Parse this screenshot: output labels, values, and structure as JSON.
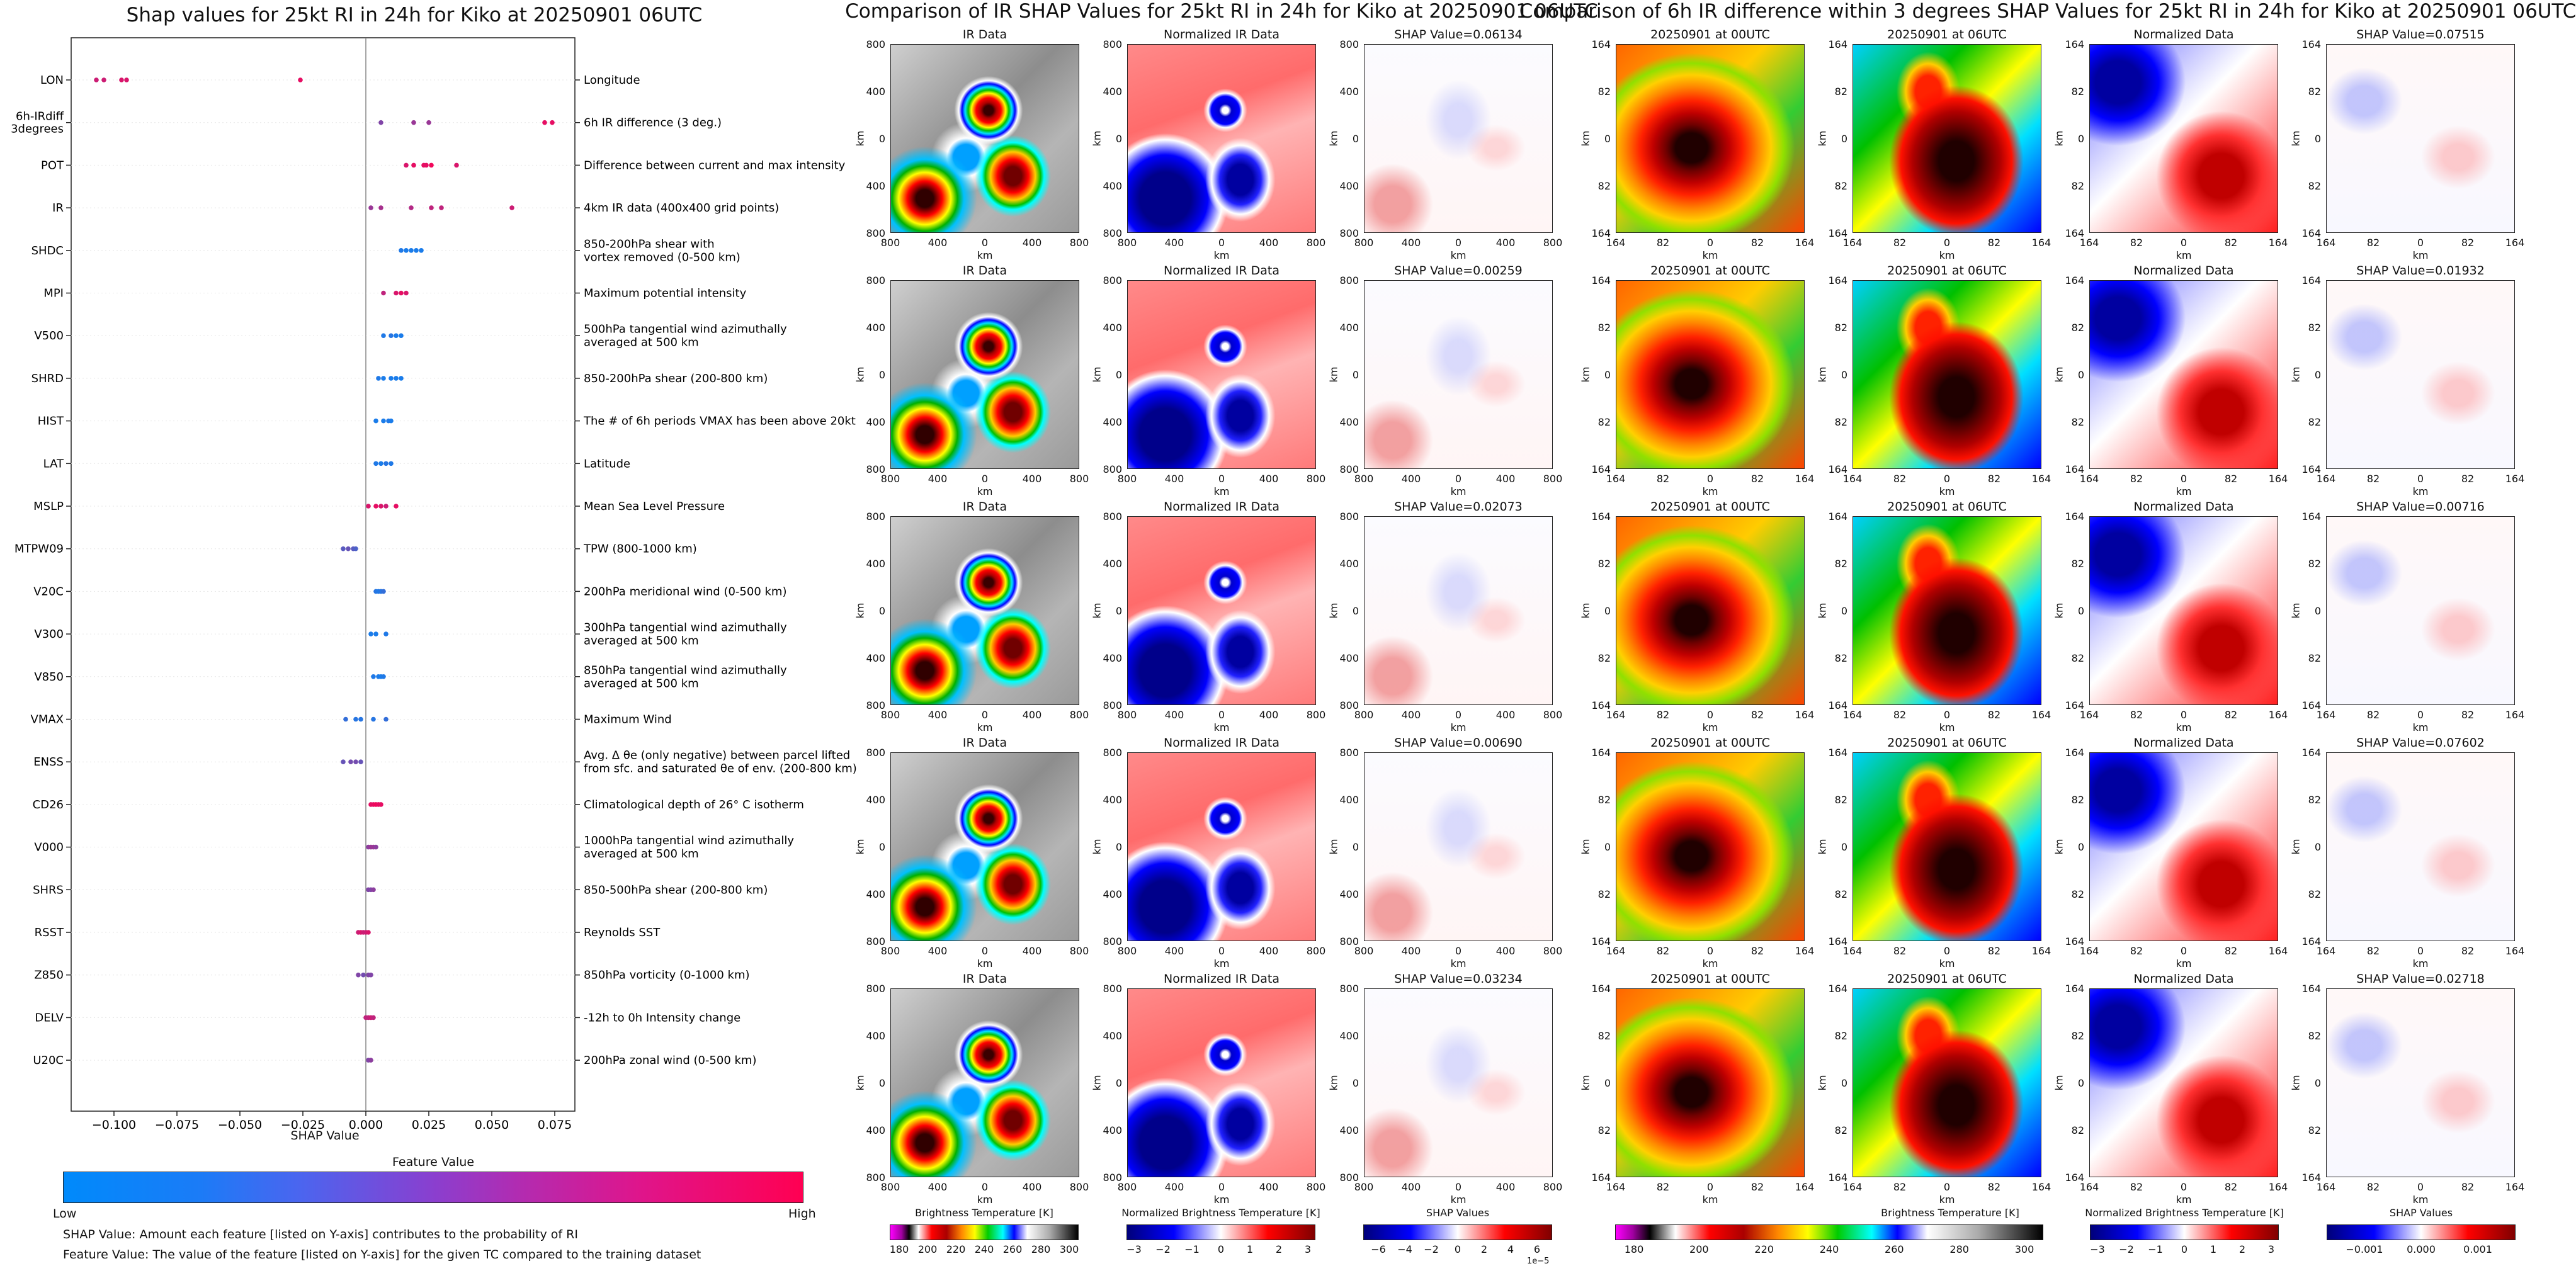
{
  "left_chart": {
    "title": "Shap values for 25kt RI in 24h for Kiko at 20250901 06UTC",
    "xlabel": "SHAP Value",
    "colorbar_title": "Feature Value",
    "colorbar_low": "Low",
    "colorbar_high": "High",
    "footnote1": "SHAP Value: Amount each feature [listed on Y-axis] contributes to the probability of RI",
    "footnote2": "Feature Value: The value of the feature [listed on Y-axis] for the given TC compared to the training dataset"
  },
  "chart_data": [
    {
      "type": "scatter",
      "title": "Shap values for 25kt RI in 24h for Kiko at 20250901 06UTC",
      "xlabel": "SHAP Value",
      "xlim": [
        -0.117,
        0.083
      ],
      "xticks": [
        "−0.100",
        "−0.075",
        "−0.050",
        "−0.025",
        "0.000",
        "0.025",
        "0.050",
        "0.075"
      ],
      "xtick_values": [
        -0.1,
        -0.075,
        -0.05,
        -0.025,
        0.0,
        0.025,
        0.05,
        0.075
      ],
      "colormap": [
        "#008afb",
        "#ff0052"
      ],
      "features": [
        {
          "label": "LON",
          "desc": [
            "Longitude"
          ],
          "points": [
            [
              -0.107,
              0.8
            ],
            [
              -0.104,
              0.8
            ],
            [
              -0.097,
              0.85
            ],
            [
              -0.095,
              0.85
            ],
            [
              -0.026,
              0.9
            ]
          ]
        },
        {
          "label": "6h-IRdiff\n3degrees",
          "desc": [
            "6h IR difference (3 deg.)"
          ],
          "points": [
            [
              0.006,
              0.5
            ],
            [
              0.019,
              0.6
            ],
            [
              0.025,
              0.6
            ],
            [
              0.071,
              0.9
            ],
            [
              0.074,
              0.9
            ]
          ]
        },
        {
          "label": "POT",
          "desc": [
            "Difference between current and max intensity"
          ],
          "points": [
            [
              0.016,
              0.85
            ],
            [
              0.019,
              0.9
            ],
            [
              0.023,
              0.9
            ],
            [
              0.024,
              0.9
            ],
            [
              0.026,
              0.95
            ],
            [
              0.036,
              0.85
            ]
          ]
        },
        {
          "label": "IR",
          "desc": [
            "4km IR data (400x400 grid points)"
          ],
          "points": [
            [
              0.002,
              0.6
            ],
            [
              0.006,
              0.65
            ],
            [
              0.018,
              0.7
            ],
            [
              0.026,
              0.75
            ],
            [
              0.03,
              0.75
            ],
            [
              0.058,
              0.8
            ]
          ]
        },
        {
          "label": "SHDC",
          "desc": [
            "850-200hPa shear with",
            "vortex removed (0-500 km)"
          ],
          "points": [
            [
              0.014,
              0.12
            ],
            [
              0.016,
              0.1
            ],
            [
              0.018,
              0.1
            ],
            [
              0.02,
              0.1
            ],
            [
              0.022,
              0.1
            ]
          ]
        },
        {
          "label": "MPI",
          "desc": [
            "Maximum potential intensity"
          ],
          "points": [
            [
              0.007,
              0.75
            ],
            [
              0.012,
              0.85
            ],
            [
              0.014,
              0.9
            ],
            [
              0.016,
              0.85
            ]
          ]
        },
        {
          "label": "V500",
          "desc": [
            "500hPa tangential wind azimuthally",
            "averaged at 500 km"
          ],
          "points": [
            [
              0.007,
              0.12
            ],
            [
              0.01,
              0.15
            ],
            [
              0.012,
              0.1
            ],
            [
              0.014,
              0.1
            ]
          ]
        },
        {
          "label": "SHRD",
          "desc": [
            "850-200hPa shear (200-800 km)"
          ],
          "points": [
            [
              0.005,
              0.12
            ],
            [
              0.007,
              0.1
            ],
            [
              0.01,
              0.1
            ],
            [
              0.012,
              0.1
            ],
            [
              0.014,
              0.1
            ]
          ]
        },
        {
          "label": "HIST",
          "desc": [
            "The # of 6h periods VMAX has been above 20kt"
          ],
          "points": [
            [
              0.004,
              0.1
            ],
            [
              0.007,
              0.1
            ],
            [
              0.009,
              0.12
            ],
            [
              0.01,
              0.1
            ]
          ]
        },
        {
          "label": "LAT",
          "desc": [
            "Latitude"
          ],
          "points": [
            [
              0.004,
              0.12
            ],
            [
              0.006,
              0.1
            ],
            [
              0.008,
              0.15
            ],
            [
              0.01,
              0.12
            ]
          ]
        },
        {
          "label": "MSLP",
          "desc": [
            "Mean Sea Level Pressure"
          ],
          "points": [
            [
              0.001,
              0.85
            ],
            [
              0.004,
              0.9
            ],
            [
              0.006,
              0.85
            ],
            [
              0.008,
              0.8
            ],
            [
              0.012,
              0.9
            ]
          ]
        },
        {
          "label": "MTPW09",
          "desc": [
            "TPW (800-1000 km)"
          ],
          "points": [
            [
              -0.009,
              0.35
            ],
            [
              -0.007,
              0.4
            ],
            [
              -0.005,
              0.35
            ],
            [
              -0.004,
              0.3
            ]
          ]
        },
        {
          "label": "V20C",
          "desc": [
            "200hPa meridional wind (0-500 km)"
          ],
          "points": [
            [
              0.004,
              0.15
            ],
            [
              0.005,
              0.12
            ],
            [
              0.006,
              0.15
            ],
            [
              0.007,
              0.2
            ]
          ]
        },
        {
          "label": "V300",
          "desc": [
            "300hPa tangential wind azimuthally",
            "averaged at 500 km"
          ],
          "points": [
            [
              0.002,
              0.1
            ],
            [
              0.004,
              0.1
            ],
            [
              0.008,
              0.12
            ]
          ]
        },
        {
          "label": "V850",
          "desc": [
            "850hPa tangential wind azimuthally",
            "averaged at 500 km"
          ],
          "points": [
            [
              0.003,
              0.12
            ],
            [
              0.005,
              0.1
            ],
            [
              0.006,
              0.1
            ],
            [
              0.007,
              0.12
            ]
          ]
        },
        {
          "label": "VMAX",
          "desc": [
            "Maximum Wind"
          ],
          "points": [
            [
              -0.008,
              0.2
            ],
            [
              -0.004,
              0.15
            ],
            [
              -0.002,
              0.15
            ],
            [
              0.003,
              0.15
            ],
            [
              0.008,
              0.2
            ]
          ]
        },
        {
          "label": "ENSS",
          "desc": [
            "Avg. Δ θe (only negative) between parcel lifted",
            "from sfc. and saturated θe of env. (200-800 km)"
          ],
          "points": [
            [
              -0.009,
              0.4
            ],
            [
              -0.006,
              0.45
            ],
            [
              -0.004,
              0.45
            ],
            [
              -0.002,
              0.4
            ]
          ]
        },
        {
          "label": "CD26",
          "desc": [
            "Climatological depth of 26° C isotherm"
          ],
          "points": [
            [
              0.002,
              0.9
            ],
            [
              0.003,
              0.9
            ],
            [
              0.004,
              0.95
            ],
            [
              0.005,
              0.9
            ],
            [
              0.006,
              0.9
            ]
          ]
        },
        {
          "label": "V000",
          "desc": [
            "1000hPa tangential wind azimuthally",
            "averaged at 500 km"
          ],
          "points": [
            [
              0.001,
              0.55
            ],
            [
              0.002,
              0.6
            ],
            [
              0.003,
              0.6
            ],
            [
              0.004,
              0.55
            ]
          ]
        },
        {
          "label": "SHRS",
          "desc": [
            "850-500hPa shear (200-800 km)"
          ],
          "points": [
            [
              0.001,
              0.5
            ],
            [
              0.002,
              0.5
            ],
            [
              0.003,
              0.55
            ]
          ]
        },
        {
          "label": "RSST",
          "desc": [
            "Reynolds SST"
          ],
          "points": [
            [
              -0.003,
              0.8
            ],
            [
              -0.002,
              0.85
            ],
            [
              -0.001,
              0.8
            ],
            [
              0.0,
              0.8
            ],
            [
              0.001,
              0.85
            ]
          ]
        },
        {
          "label": "Z850",
          "desc": [
            "850hPa vorticity (0-1000 km)"
          ],
          "points": [
            [
              -0.003,
              0.5
            ],
            [
              -0.001,
              0.45
            ],
            [
              0.001,
              0.5
            ],
            [
              0.002,
              0.5
            ]
          ]
        },
        {
          "label": "DELV",
          "desc": [
            "-12h to 0h Intensity change"
          ],
          "points": [
            [
              0.0,
              0.75
            ],
            [
              0.001,
              0.75
            ],
            [
              0.002,
              0.8
            ],
            [
              0.003,
              0.75
            ]
          ]
        },
        {
          "label": "U20C",
          "desc": [
            "200hPa zonal wind (0-500 km)"
          ],
          "points": [
            [
              0.001,
              0.5
            ],
            [
              0.002,
              0.55
            ]
          ]
        }
      ]
    }
  ],
  "mid": {
    "title": "Comparison of IR SHAP Values for 25kt RI in 24h for Kiko at 20250901 06UTC",
    "col_titles": [
      "IR Data",
      "Normalized IR Data"
    ],
    "shap_titles": [
      "SHAP Value=0.06134",
      "SHAP Value=0.00259",
      "SHAP Value=0.02073",
      "SHAP Value=0.00690",
      "SHAP Value=0.03234"
    ],
    "ticks": [
      "800",
      "400",
      "0",
      "400",
      "800"
    ],
    "axis_unit": "km",
    "cb1": {
      "label": "Brightness Temperature [K]",
      "ticks": [
        "180",
        "200",
        "220",
        "240",
        "260",
        "280",
        "300"
      ]
    },
    "cb2": {
      "label": "Normalized Brightness Temperature [K]",
      "ticks": [
        "−3",
        "−2",
        "−1",
        "0",
        "1",
        "2",
        "3"
      ]
    },
    "cb3": {
      "label": "SHAP Values",
      "ticks": [
        "−6",
        "−4",
        "−2",
        "0",
        "2",
        "4",
        "6"
      ],
      "exponent": "1e−5"
    }
  },
  "right": {
    "title": "Comparison of 6h IR difference within 3 degrees SHAP Values for 25kt RI in 24h for Kiko at 20250901 06UTC",
    "col_titles": [
      "20250901 at 00UTC",
      "20250901 at 06UTC",
      "Normalized Data"
    ],
    "shap_titles": [
      "SHAP Value=0.07515",
      "SHAP Value=0.01932",
      "SHAP Value=0.00716",
      "SHAP Value=0.07602",
      "SHAP Value=0.02718"
    ],
    "ticks": [
      "164",
      "82",
      "0",
      "82",
      "164"
    ],
    "axis_unit": "km",
    "cb1": {
      "label": "Brightness Temperature [K]",
      "ticks": [
        "180",
        "200",
        "220",
        "240",
        "260",
        "280",
        "300"
      ]
    },
    "cb2": {
      "label": "Normalized Brightness Temperature [K]",
      "ticks": [
        "−3",
        "−2",
        "−1",
        "0",
        "1",
        "2",
        "3"
      ]
    },
    "cb3": {
      "label": "SHAP Values",
      "ticks": [
        "−0.001",
        "0.000",
        "0.001"
      ]
    }
  }
}
